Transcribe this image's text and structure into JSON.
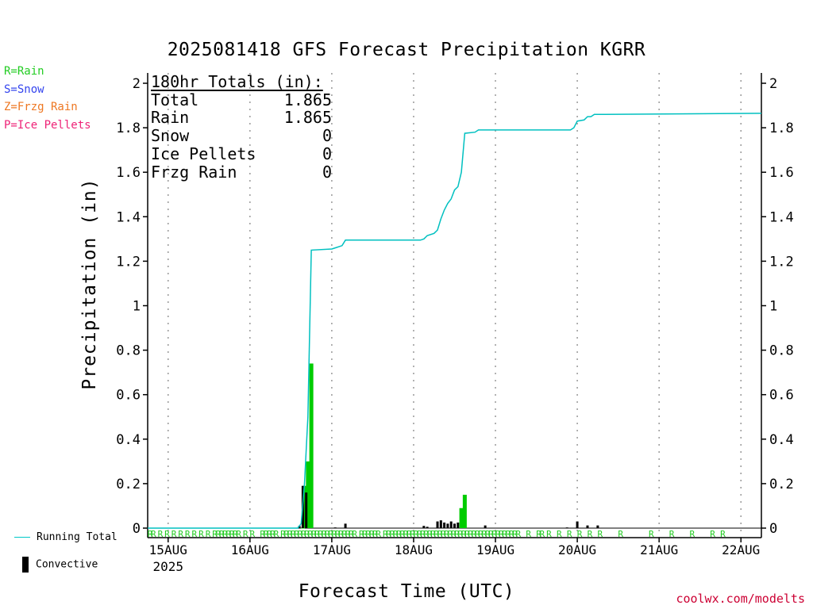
{
  "title": "2025081418 GFS Forecast Precipitation KGRR",
  "legend_types": [
    {
      "label": "R=Rain",
      "color": "#22cc22"
    },
    {
      "label": "S=Snow",
      "color": "#3344ee"
    },
    {
      "label": "Z=Frzg Rain",
      "color": "#ee7722"
    },
    {
      "label": "P=Ice Pellets",
      "color": "#ee2277"
    }
  ],
  "totals": {
    "heading": "180hr Totals (in):",
    "rows": [
      {
        "label": "Total",
        "value": "1.865"
      },
      {
        "label": "Rain",
        "value": "1.865"
      },
      {
        "label": "Snow",
        "value": "0"
      },
      {
        "label": "Ice Pellets",
        "value": "0"
      },
      {
        "label": "Frzg Rain",
        "value": "0"
      }
    ]
  },
  "bottom_legend": {
    "running_total": "Running Total",
    "convective": "Convective"
  },
  "credit": "coolwx.com/modelts",
  "colors": {
    "running_total": "#00c0c0",
    "rain": "#00cc00",
    "convective": "#000000"
  },
  "chart_data": {
    "type": "bar",
    "title": "2025081418 GFS Forecast Precipitation KGRR",
    "xlabel": "Forecast Time (UTC)",
    "ylabel": "Precipitation (in)",
    "ylim": [
      0,
      2.0
    ],
    "xlim_hours": [
      0,
      180
    ],
    "yticks": [
      0,
      0.2,
      0.4,
      0.6,
      0.8,
      1,
      1.2,
      1.4,
      1.6,
      1.8,
      2
    ],
    "ytick_labels": [
      "0",
      "0.2",
      "0.4",
      "0.6",
      "0.8",
      "1",
      "1.2",
      "1.4",
      "1.6",
      "1.8",
      "2"
    ],
    "xticks": [
      {
        "hour": 6,
        "label": "15AUG",
        "sub": "2025"
      },
      {
        "hour": 30,
        "label": "16AUG"
      },
      {
        "hour": 54,
        "label": "17AUG"
      },
      {
        "hour": 78,
        "label": "18AUG"
      },
      {
        "hour": 102,
        "label": "19AUG"
      },
      {
        "hour": 126,
        "label": "20AUG"
      },
      {
        "hour": 150,
        "label": "21AUG"
      },
      {
        "hour": 174,
        "label": "22AUG"
      }
    ],
    "grid": "vertical dotted",
    "series": [
      {
        "name": "Running Total",
        "type": "line",
        "points": [
          [
            0,
            0
          ],
          [
            44,
            0
          ],
          [
            45,
            0.02
          ],
          [
            46,
            0.2
          ],
          [
            47,
            0.5
          ],
          [
            48,
            1.25
          ],
          [
            54,
            1.255
          ],
          [
            55,
            1.26
          ],
          [
            57,
            1.27
          ],
          [
            58,
            1.295
          ],
          [
            80,
            1.295
          ],
          [
            81,
            1.3
          ],
          [
            82,
            1.315
          ],
          [
            84,
            1.325
          ],
          [
            85,
            1.34
          ],
          [
            86,
            1.39
          ],
          [
            87,
            1.43
          ],
          [
            88,
            1.46
          ],
          [
            89,
            1.48
          ],
          [
            90,
            1.52
          ],
          [
            91,
            1.535
          ],
          [
            92,
            1.6
          ],
          [
            93,
            1.775
          ],
          [
            96,
            1.78
          ],
          [
            97,
            1.79
          ],
          [
            124,
            1.79
          ],
          [
            125,
            1.8
          ],
          [
            126,
            1.83
          ],
          [
            128,
            1.835
          ],
          [
            129,
            1.85
          ],
          [
            130,
            1.85
          ],
          [
            131,
            1.86
          ],
          [
            180,
            1.865
          ]
        ]
      },
      {
        "name": "Rain",
        "type": "bar",
        "bars": [
          [
            45.5,
            0.0
          ],
          [
            46,
            0.19
          ],
          [
            47,
            0.3
          ],
          [
            48,
            0.74
          ],
          [
            92,
            0.09
          ],
          [
            93,
            0.15
          ]
        ]
      },
      {
        "name": "Convective",
        "type": "bar",
        "bars": [
          [
            44.5,
            0.01
          ],
          [
            45.5,
            0.19
          ],
          [
            46.5,
            0.16
          ],
          [
            55,
            0.003
          ],
          [
            58,
            0.02
          ],
          [
            81,
            0.01
          ],
          [
            82,
            0.006
          ],
          [
            85,
            0.03
          ],
          [
            86,
            0.035
          ],
          [
            87,
            0.025
          ],
          [
            88,
            0.02
          ],
          [
            89,
            0.03
          ],
          [
            90,
            0.02
          ],
          [
            91,
            0.025
          ],
          [
            99,
            0.012
          ],
          [
            123,
            0.003
          ],
          [
            126,
            0.03
          ],
          [
            129,
            0.012
          ],
          [
            132,
            0.012
          ]
        ]
      }
    ],
    "ptype_markers": {
      "label": "R",
      "hours": [
        0,
        1,
        3,
        5,
        7,
        9,
        11,
        13,
        15,
        17,
        19,
        20,
        21,
        22,
        23,
        24,
        25,
        26,
        28,
        30,
        33,
        34,
        35,
        36,
        37,
        39,
        40,
        41,
        42,
        43,
        44,
        45,
        46,
        47,
        48,
        49,
        50,
        51,
        52,
        53,
        54,
        55,
        56,
        57,
        58,
        59,
        60,
        62,
        63,
        64,
        65,
        66,
        67,
        69,
        70,
        71,
        72,
        73,
        74,
        75,
        76,
        77,
        78,
        79,
        80,
        81,
        82,
        83,
        84,
        85,
        86,
        87,
        88,
        89,
        90,
        91,
        92,
        93,
        94,
        95,
        96,
        97,
        98,
        99,
        100,
        101,
        102,
        103,
        104,
        105,
        106,
        107,
        108,
        111,
        114,
        115,
        117,
        120,
        123,
        126,
        129,
        132,
        138,
        147,
        153,
        159,
        165,
        168
      ]
    }
  }
}
